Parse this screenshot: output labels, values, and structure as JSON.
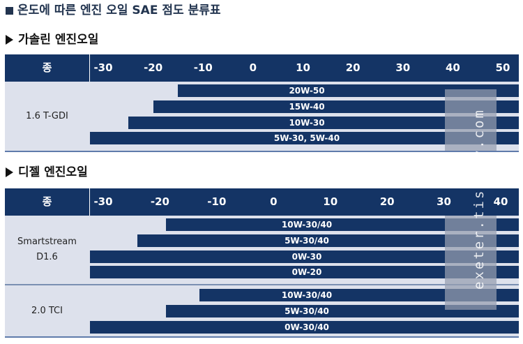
{
  "page_title": "온도에 따른 엔진 오일 SAE 점도 분류표",
  "watermark": "exeter.tistory.com",
  "colors": {
    "header_bg": "#143465",
    "bar": "#143465",
    "row_bg": "#dde1ec",
    "band": "#969eb0"
  },
  "sections": [
    {
      "title": "가솔린 엔진오일",
      "header_label": "종 류",
      "ticks": [
        "-30",
        "-20",
        "-10",
        "0",
        "10",
        "20",
        "30",
        "40",
        "50"
      ],
      "tick_values": [
        -30,
        -20,
        -10,
        0,
        10,
        20,
        30,
        40,
        50
      ],
      "groups": [
        {
          "engine": [
            "1.6 T-GDI"
          ],
          "bars": [
            {
              "label": "20W-50",
              "from": -15,
              "to": 50
            },
            {
              "label": "15W-40",
              "from": -20,
              "to": 50
            },
            {
              "label": "10W-30",
              "from": -25,
              "to": 50
            },
            {
              "label": "5W-30, 5W-40",
              "from": -30,
              "to": 50
            }
          ]
        }
      ]
    },
    {
      "title": "디젤 엔진오일",
      "header_label": "종 류",
      "ticks": [
        "-30",
        "-20",
        "-10",
        "0",
        "10",
        "20",
        "30",
        "40"
      ],
      "tick_values": [
        -30,
        -20,
        -10,
        0,
        10,
        20,
        30,
        40
      ],
      "groups": [
        {
          "engine": [
            "Smartstream",
            "D1.6"
          ],
          "bars": [
            {
              "label": "10W-30/40",
              "from": -19,
              "to": 40
            },
            {
              "label": "5W-30/40",
              "from": -24,
              "to": 40
            },
            {
              "label": "0W-30",
              "from": -30,
              "to": 40
            },
            {
              "label": "0W-20",
              "from": -30,
              "to": 40
            }
          ]
        },
        {
          "engine": [
            "2.0 TCI"
          ],
          "bars": [
            {
              "label": "10W-30/40",
              "from": -13,
              "to": 40
            },
            {
              "label": "5W-30/40",
              "from": -19,
              "to": 40
            },
            {
              "label": "0W-30/40",
              "from": -30,
              "to": 40
            }
          ]
        }
      ]
    }
  ]
}
